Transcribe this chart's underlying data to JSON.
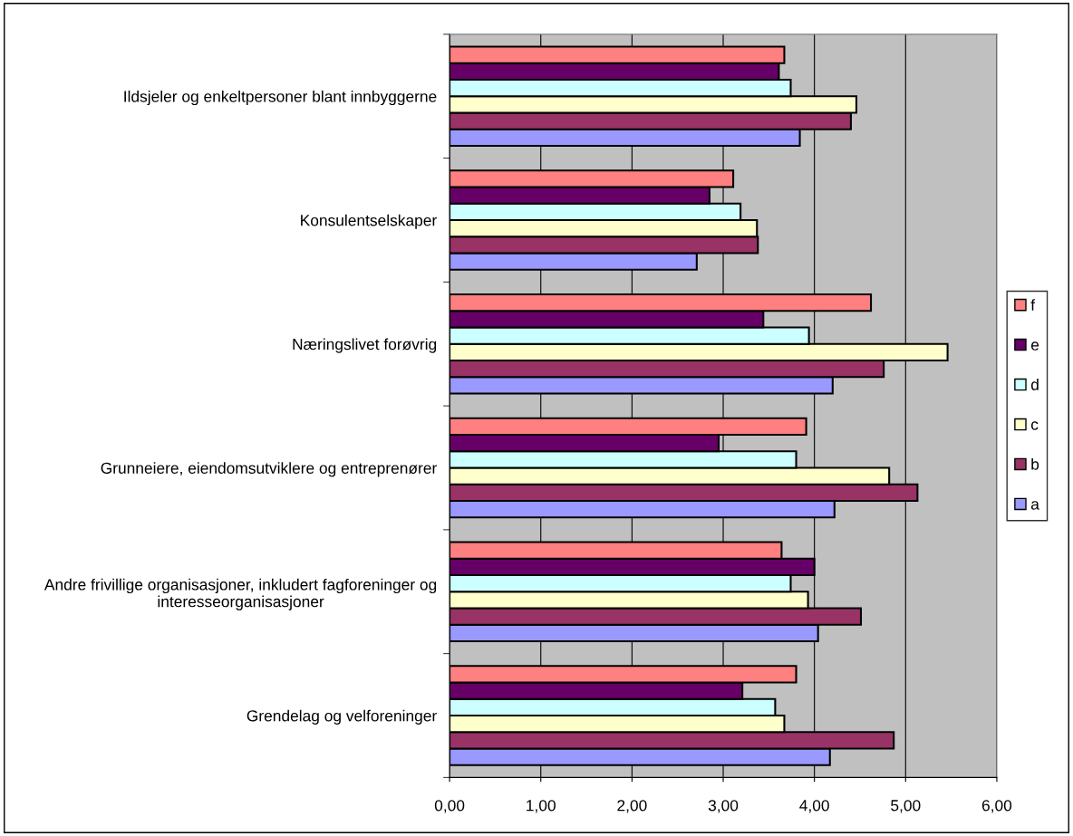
{
  "chart_data": {
    "type": "bar",
    "orientation": "horizontal",
    "categories": [
      "Ildsjeler og enkeltpersoner blant innbyggerne",
      "Konsulentselskaper",
      "Næringslivet forøvrig",
      "Grunneiere, eiendomsutviklere og entreprenører",
      "Andre frivillige organisasjoner, inkludert fagforeninger og\ninteresseorganisasjoner",
      "Grendelag og velforeninger"
    ],
    "series": [
      {
        "name": "a",
        "color": "#9999ff",
        "values": [
          3.84,
          2.71,
          4.2,
          4.22,
          4.04,
          4.17
        ]
      },
      {
        "name": "b",
        "color": "#993366",
        "values": [
          4.4,
          3.38,
          4.76,
          5.13,
          4.51,
          4.87
        ]
      },
      {
        "name": "c",
        "color": "#ffffcc",
        "values": [
          4.46,
          3.37,
          5.46,
          4.82,
          3.93,
          3.67
        ]
      },
      {
        "name": "d",
        "color": "#ccffff",
        "values": [
          3.74,
          3.19,
          3.94,
          3.8,
          3.74,
          3.57
        ]
      },
      {
        "name": "e",
        "color": "#660066",
        "values": [
          3.61,
          2.85,
          3.44,
          2.95,
          4.0,
          3.21
        ]
      },
      {
        "name": "f",
        "color": "#ff8080",
        "values": [
          3.67,
          3.11,
          4.62,
          3.91,
          3.64,
          3.8
        ]
      }
    ],
    "xlim": [
      0,
      6
    ],
    "xticks": [
      {
        "value": 0,
        "label": "0,00"
      },
      {
        "value": 1,
        "label": "1,00"
      },
      {
        "value": 2,
        "label": "2,00"
      },
      {
        "value": 3,
        "label": "3,00"
      },
      {
        "value": 4,
        "label": "4,00"
      },
      {
        "value": 5,
        "label": "5,00"
      },
      {
        "value": 6,
        "label": "6,00"
      }
    ],
    "grid": "x",
    "legend": "right"
  }
}
